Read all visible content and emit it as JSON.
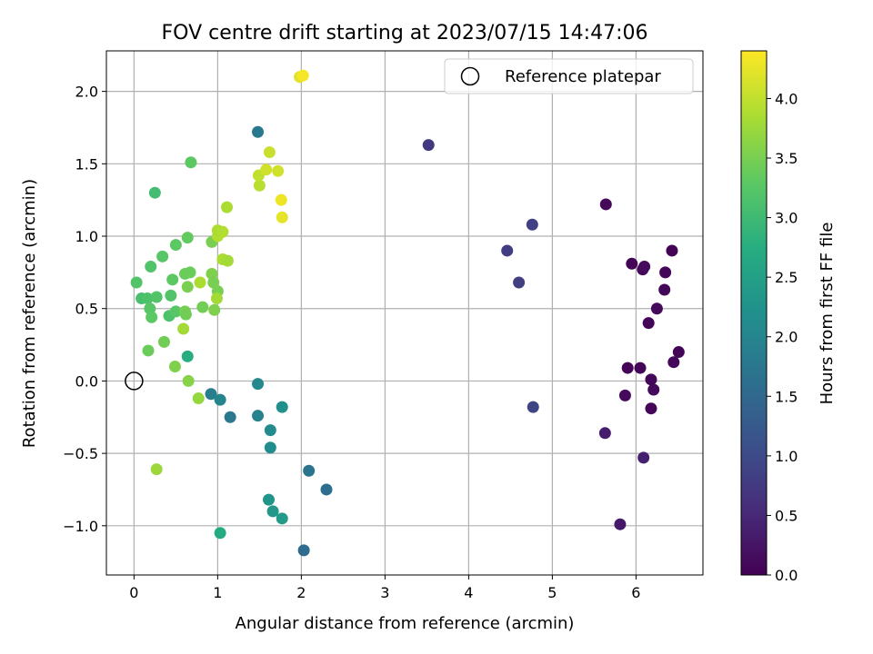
{
  "chart_data": {
    "type": "scatter",
    "title": "FOV centre drift starting at 2023/07/15 14:47:06",
    "xlabel": "Angular distance from reference (arcmin)",
    "ylabel": "Rotation from reference (arcmin)",
    "xlim": [
      -0.33,
      6.8
    ],
    "ylim": [
      -1.34,
      2.28
    ],
    "xticks": [
      0,
      1,
      2,
      3,
      4,
      5,
      6
    ],
    "xtick_labels": [
      "0",
      "1",
      "2",
      "3",
      "4",
      "5",
      "6"
    ],
    "yticks": [
      -1.0,
      -0.5,
      0.0,
      0.5,
      1.0,
      1.5,
      2.0
    ],
    "ytick_labels": [
      "−1.0",
      "−0.5",
      "0.0",
      "0.5",
      "1.0",
      "1.5",
      "2.0"
    ],
    "grid": true,
    "legend": {
      "placement": "top-right",
      "entries": [
        {
          "label": "Reference platepar",
          "marker": "open-circle",
          "x": 0.0,
          "y": 0.0
        }
      ]
    },
    "colorbar": {
      "label": "Hours from first FF file",
      "range": [
        0.0,
        4.4
      ],
      "ticks": [
        0.0,
        0.5,
        1.0,
        1.5,
        2.0,
        2.5,
        3.0,
        3.5,
        4.0
      ],
      "tick_labels": [
        "0.0",
        "0.5",
        "1.0",
        "1.5",
        "2.0",
        "2.5",
        "3.0",
        "3.5",
        "4.0"
      ],
      "colormap": "viridis"
    },
    "series": [
      {
        "points": [
          {
            "x": 5.64,
            "y": 1.22,
            "c": 0.08
          },
          {
            "x": 5.95,
            "y": 0.81,
            "c": 0.05
          },
          {
            "x": 6.08,
            "y": 0.77,
            "c": 0.1
          },
          {
            "x": 6.1,
            "y": 0.79,
            "c": 0.12
          },
          {
            "x": 6.43,
            "y": 0.9,
            "c": 0.03
          },
          {
            "x": 6.35,
            "y": 0.75,
            "c": 0.06
          },
          {
            "x": 6.34,
            "y": 0.63,
            "c": 0.09
          },
          {
            "x": 6.25,
            "y": 0.5,
            "c": 0.11
          },
          {
            "x": 6.15,
            "y": 0.4,
            "c": 0.07
          },
          {
            "x": 6.51,
            "y": 0.2,
            "c": 0.05
          },
          {
            "x": 6.45,
            "y": 0.13,
            "c": 0.08
          },
          {
            "x": 5.9,
            "y": 0.09,
            "c": 0.04
          },
          {
            "x": 6.05,
            "y": 0.09,
            "c": 0.06
          },
          {
            "x": 6.18,
            "y": 0.01,
            "c": 0.09
          },
          {
            "x": 6.21,
            "y": -0.06,
            "c": 0.1
          },
          {
            "x": 5.87,
            "y": -0.1,
            "c": 0.12
          },
          {
            "x": 6.18,
            "y": -0.19,
            "c": 0.08
          },
          {
            "x": 5.63,
            "y": -0.36,
            "c": 0.35
          },
          {
            "x": 6.09,
            "y": -0.53,
            "c": 0.4
          },
          {
            "x": 5.81,
            "y": -0.99,
            "c": 0.3
          },
          {
            "x": 3.52,
            "y": 1.63,
            "c": 0.75
          },
          {
            "x": 4.76,
            "y": 1.08,
            "c": 0.85
          },
          {
            "x": 4.46,
            "y": 0.9,
            "c": 0.8
          },
          {
            "x": 4.6,
            "y": 0.68,
            "c": 0.82
          },
          {
            "x": 4.77,
            "y": -0.18,
            "c": 0.9
          },
          {
            "x": 1.48,
            "y": 1.72,
            "c": 1.8
          },
          {
            "x": 2.03,
            "y": -1.17,
            "c": 1.55
          },
          {
            "x": 2.3,
            "y": -0.75,
            "c": 1.6
          },
          {
            "x": 2.09,
            "y": -0.62,
            "c": 1.7
          },
          {
            "x": 1.15,
            "y": -0.25,
            "c": 1.75
          },
          {
            "x": 0.92,
            "y": -0.09,
            "c": 1.9
          },
          {
            "x": 1.03,
            "y": -0.13,
            "c": 2.0
          },
          {
            "x": 1.48,
            "y": -0.24,
            "c": 1.95
          },
          {
            "x": 1.48,
            "y": -0.02,
            "c": 2.05
          },
          {
            "x": 1.63,
            "y": -0.34,
            "c": 2.1
          },
          {
            "x": 1.63,
            "y": -0.46,
            "c": 2.15
          },
          {
            "x": 1.77,
            "y": -0.18,
            "c": 2.2
          },
          {
            "x": 1.61,
            "y": -0.82,
            "c": 2.3
          },
          {
            "x": 1.66,
            "y": -0.9,
            "c": 2.35
          },
          {
            "x": 1.77,
            "y": -0.95,
            "c": 2.4
          },
          {
            "x": 1.03,
            "y": -1.05,
            "c": 2.7
          },
          {
            "x": 0.64,
            "y": 0.17,
            "c": 2.75
          },
          {
            "x": 0.25,
            "y": 1.3,
            "c": 3.05
          },
          {
            "x": 0.68,
            "y": 1.51,
            "c": 3.3
          },
          {
            "x": 0.03,
            "y": 0.68,
            "c": 3.2
          },
          {
            "x": 0.09,
            "y": 0.57,
            "c": 3.1
          },
          {
            "x": 0.16,
            "y": 0.57,
            "c": 3.15
          },
          {
            "x": 0.2,
            "y": 0.79,
            "c": 3.2
          },
          {
            "x": 0.19,
            "y": 0.5,
            "c": 3.25
          },
          {
            "x": 0.21,
            "y": 0.44,
            "c": 3.3
          },
          {
            "x": 0.27,
            "y": 0.58,
            "c": 3.2
          },
          {
            "x": 0.34,
            "y": 0.86,
            "c": 3.25
          },
          {
            "x": 0.42,
            "y": 0.45,
            "c": 3.15
          },
          {
            "x": 0.44,
            "y": 0.59,
            "c": 3.2
          },
          {
            "x": 0.46,
            "y": 0.7,
            "c": 3.3
          },
          {
            "x": 0.5,
            "y": 0.94,
            "c": 3.3
          },
          {
            "x": 0.5,
            "y": 0.48,
            "c": 3.25
          },
          {
            "x": 0.17,
            "y": 0.21,
            "c": 3.4
          },
          {
            "x": 0.36,
            "y": 0.27,
            "c": 3.45
          },
          {
            "x": 0.61,
            "y": 0.74,
            "c": 3.4
          },
          {
            "x": 0.61,
            "y": 0.48,
            "c": 3.5
          },
          {
            "x": 0.62,
            "y": 0.46,
            "c": 3.45
          },
          {
            "x": 0.64,
            "y": 0.65,
            "c": 3.5
          },
          {
            "x": 0.64,
            "y": 0.99,
            "c": 3.35
          },
          {
            "x": 0.67,
            "y": 0.75,
            "c": 3.4
          },
          {
            "x": 0.82,
            "y": 0.51,
            "c": 3.45
          },
          {
            "x": 0.93,
            "y": 0.96,
            "c": 3.5
          },
          {
            "x": 0.93,
            "y": 0.74,
            "c": 3.55
          },
          {
            "x": 0.95,
            "y": 0.68,
            "c": 3.5
          },
          {
            "x": 0.96,
            "y": 0.49,
            "c": 3.55
          },
          {
            "x": 1.0,
            "y": 0.62,
            "c": 3.5
          },
          {
            "x": 0.49,
            "y": 0.1,
            "c": 3.55
          },
          {
            "x": 0.65,
            "y": 0.0,
            "c": 3.6
          },
          {
            "x": 0.77,
            "y": -0.12,
            "c": 3.7
          },
          {
            "x": 0.27,
            "y": -0.61,
            "c": 3.75
          },
          {
            "x": 0.59,
            "y": 0.36,
            "c": 3.8
          },
          {
            "x": 0.79,
            "y": 0.68,
            "c": 3.85
          },
          {
            "x": 0.99,
            "y": 0.57,
            "c": 3.8
          },
          {
            "x": 1.0,
            "y": 1.0,
            "c": 3.9
          },
          {
            "x": 1.0,
            "y": 1.04,
            "c": 3.85
          },
          {
            "x": 1.06,
            "y": 1.03,
            "c": 3.9
          },
          {
            "x": 1.06,
            "y": 0.84,
            "c": 3.85
          },
          {
            "x": 1.12,
            "y": 0.83,
            "c": 3.8
          },
          {
            "x": 1.11,
            "y": 1.2,
            "c": 3.85
          },
          {
            "x": 1.5,
            "y": 1.35,
            "c": 3.95
          },
          {
            "x": 1.49,
            "y": 1.42,
            "c": 4.0
          },
          {
            "x": 1.58,
            "y": 1.46,
            "c": 4.1
          },
          {
            "x": 1.62,
            "y": 1.58,
            "c": 4.05
          },
          {
            "x": 1.72,
            "y": 1.45,
            "c": 4.1
          },
          {
            "x": 1.76,
            "y": 1.25,
            "c": 4.3
          },
          {
            "x": 1.77,
            "y": 1.13,
            "c": 4.25
          },
          {
            "x": 1.98,
            "y": 2.1,
            "c": 4.2
          },
          {
            "x": 2.02,
            "y": 2.11,
            "c": 4.35
          }
        ]
      }
    ]
  }
}
